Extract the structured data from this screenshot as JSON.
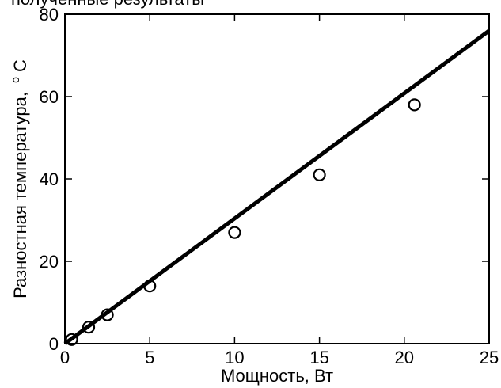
{
  "header_fragment": "полученные результаты",
  "chart_data": {
    "type": "scatter",
    "xlabel": "Мощность, Вт",
    "ylabel": "Разностная температура,",
    "ylabel_unit_superscript": "o",
    "ylabel_unit": "C",
    "xlim": [
      0,
      25
    ],
    "ylim": [
      0,
      80
    ],
    "xticks": [
      0,
      5,
      10,
      15,
      20,
      25
    ],
    "yticks": [
      0,
      20,
      40,
      60,
      80
    ],
    "grid": false,
    "series": [
      {
        "kind": "points",
        "marker": "open-circle",
        "x": [
          0.4,
          1.4,
          2.5,
          5.0,
          10.0,
          15.0,
          20.6
        ],
        "y": [
          1,
          4,
          7,
          14,
          27,
          41,
          58
        ]
      },
      {
        "kind": "fit-line",
        "x": [
          0,
          25
        ],
        "y": [
          0,
          76
        ]
      }
    ],
    "colors": {
      "line": "#000000",
      "marker": "#000000",
      "background": "#ffffff"
    }
  }
}
